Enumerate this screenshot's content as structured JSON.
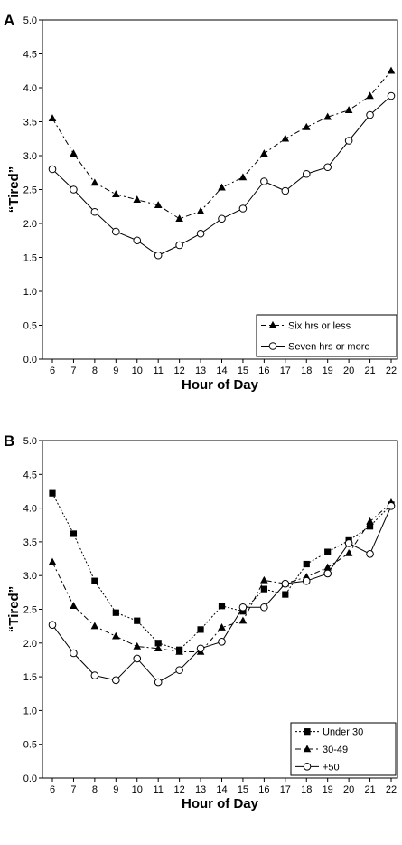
{
  "chart_data": [
    {
      "type": "line",
      "panel_label": "A",
      "xlabel": "Hour of Day",
      "ylabel": "“Tired”",
      "x": [
        6,
        7,
        8,
        9,
        10,
        11,
        12,
        13,
        14,
        15,
        16,
        17,
        18,
        19,
        20,
        21,
        22
      ],
      "x_ticks": [
        "6",
        "7",
        "8",
        "9",
        "10",
        "11",
        "12",
        "13",
        "14",
        "15",
        "16",
        "17",
        "18",
        "19",
        "20",
        "21",
        "22"
      ],
      "y_ticks": [
        "0.0",
        "0.5",
        "1.0",
        "1.5",
        "2.0",
        "2.5",
        "3.0",
        "3.5",
        "4.0",
        "4.5",
        "5.0"
      ],
      "ylim": [
        0,
        5
      ],
      "grid": false,
      "legend_position": "bottom-right",
      "series": [
        {
          "name": "Six hrs or less",
          "marker": "filled-triangle",
          "line": "dash-dot",
          "color": "#000000",
          "values": [
            3.55,
            3.03,
            2.6,
            2.43,
            2.35,
            2.27,
            2.07,
            2.18,
            2.53,
            2.68,
            3.03,
            3.25,
            3.42,
            3.57,
            3.67,
            3.88,
            4.25
          ]
        },
        {
          "name": "Seven hrs or more",
          "marker": "open-circle",
          "line": "solid",
          "color": "#000000",
          "values": [
            2.8,
            2.5,
            2.17,
            1.88,
            1.75,
            1.53,
            1.68,
            1.85,
            2.07,
            2.22,
            2.62,
            2.48,
            2.73,
            2.83,
            3.22,
            3.6,
            3.88
          ]
        }
      ]
    },
    {
      "type": "line",
      "panel_label": "B",
      "xlabel": "Hour of Day",
      "ylabel": "“Tired”",
      "x": [
        6,
        7,
        8,
        9,
        10,
        11,
        12,
        13,
        14,
        15,
        16,
        17,
        18,
        19,
        20,
        21,
        22
      ],
      "x_ticks": [
        "6",
        "7",
        "8",
        "9",
        "10",
        "11",
        "12",
        "13",
        "14",
        "15",
        "16",
        "17",
        "18",
        "19",
        "20",
        "21",
        "22"
      ],
      "y_ticks": [
        "0.0",
        "0.5",
        "1.0",
        "1.5",
        "2.0",
        "2.5",
        "3.0",
        "3.5",
        "4.0",
        "4.5",
        "5.0"
      ],
      "ylim": [
        0,
        5
      ],
      "grid": false,
      "legend_position": "bottom-right",
      "series": [
        {
          "name": "Under 30",
          "marker": "filled-square",
          "line": "dotted",
          "color": "#000000",
          "values": [
            4.22,
            3.62,
            2.92,
            2.45,
            2.33,
            2.0,
            1.9,
            2.2,
            2.55,
            2.47,
            2.8,
            2.72,
            3.17,
            3.35,
            3.52,
            3.73,
            4.05
          ]
        },
        {
          "name": "30-49",
          "marker": "filled-triangle",
          "line": "dash-dot",
          "color": "#000000",
          "values": [
            3.2,
            2.55,
            2.25,
            2.1,
            1.95,
            1.92,
            1.87,
            1.87,
            2.23,
            2.33,
            2.93,
            2.88,
            2.98,
            3.12,
            3.33,
            3.8,
            4.08
          ]
        },
        {
          "name": "+50",
          "marker": "open-circle",
          "line": "solid",
          "color": "#000000",
          "values": [
            2.27,
            1.85,
            1.52,
            1.45,
            1.77,
            1.42,
            1.6,
            1.92,
            2.02,
            2.53,
            2.53,
            2.88,
            2.92,
            3.03,
            3.48,
            3.32,
            4.03
          ]
        }
      ]
    }
  ]
}
